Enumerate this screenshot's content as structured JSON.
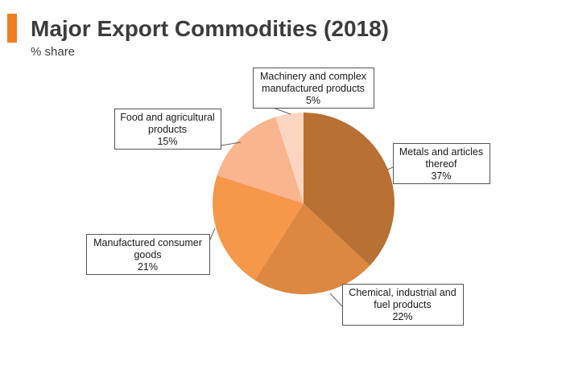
{
  "header": {
    "title": "Major Export Commodities (2018)",
    "subtitle": "% share",
    "accent_color": "#f07f22"
  },
  "chart_data": {
    "type": "pie",
    "title": "Major Export Commodities (2018)",
    "subtitle": "% share",
    "start_angle": "12 o'clock",
    "direction": "clockwise",
    "slices": [
      {
        "label_lines": [
          "Metals and articles",
          "thereof"
        ],
        "value": 37,
        "value_label": "37%",
        "color": "#b87033"
      },
      {
        "label_lines": [
          "Chemical, industrial and",
          "fuel products"
        ],
        "value": 22,
        "value_label": "22%",
        "color": "#dc8840"
      },
      {
        "label_lines": [
          "Manufactured consumer",
          "goods"
        ],
        "value": 21,
        "value_label": "21%",
        "color": "#f5984a"
      },
      {
        "label_lines": [
          "Food and agricultural",
          "products"
        ],
        "value": 15,
        "value_label": "15%",
        "color": "#f8b58e"
      },
      {
        "label_lines": [
          "Machinery and complex",
          "manufactured products"
        ],
        "value": 5,
        "value_label": "5%",
        "color": "#fdd5c0"
      }
    ]
  }
}
